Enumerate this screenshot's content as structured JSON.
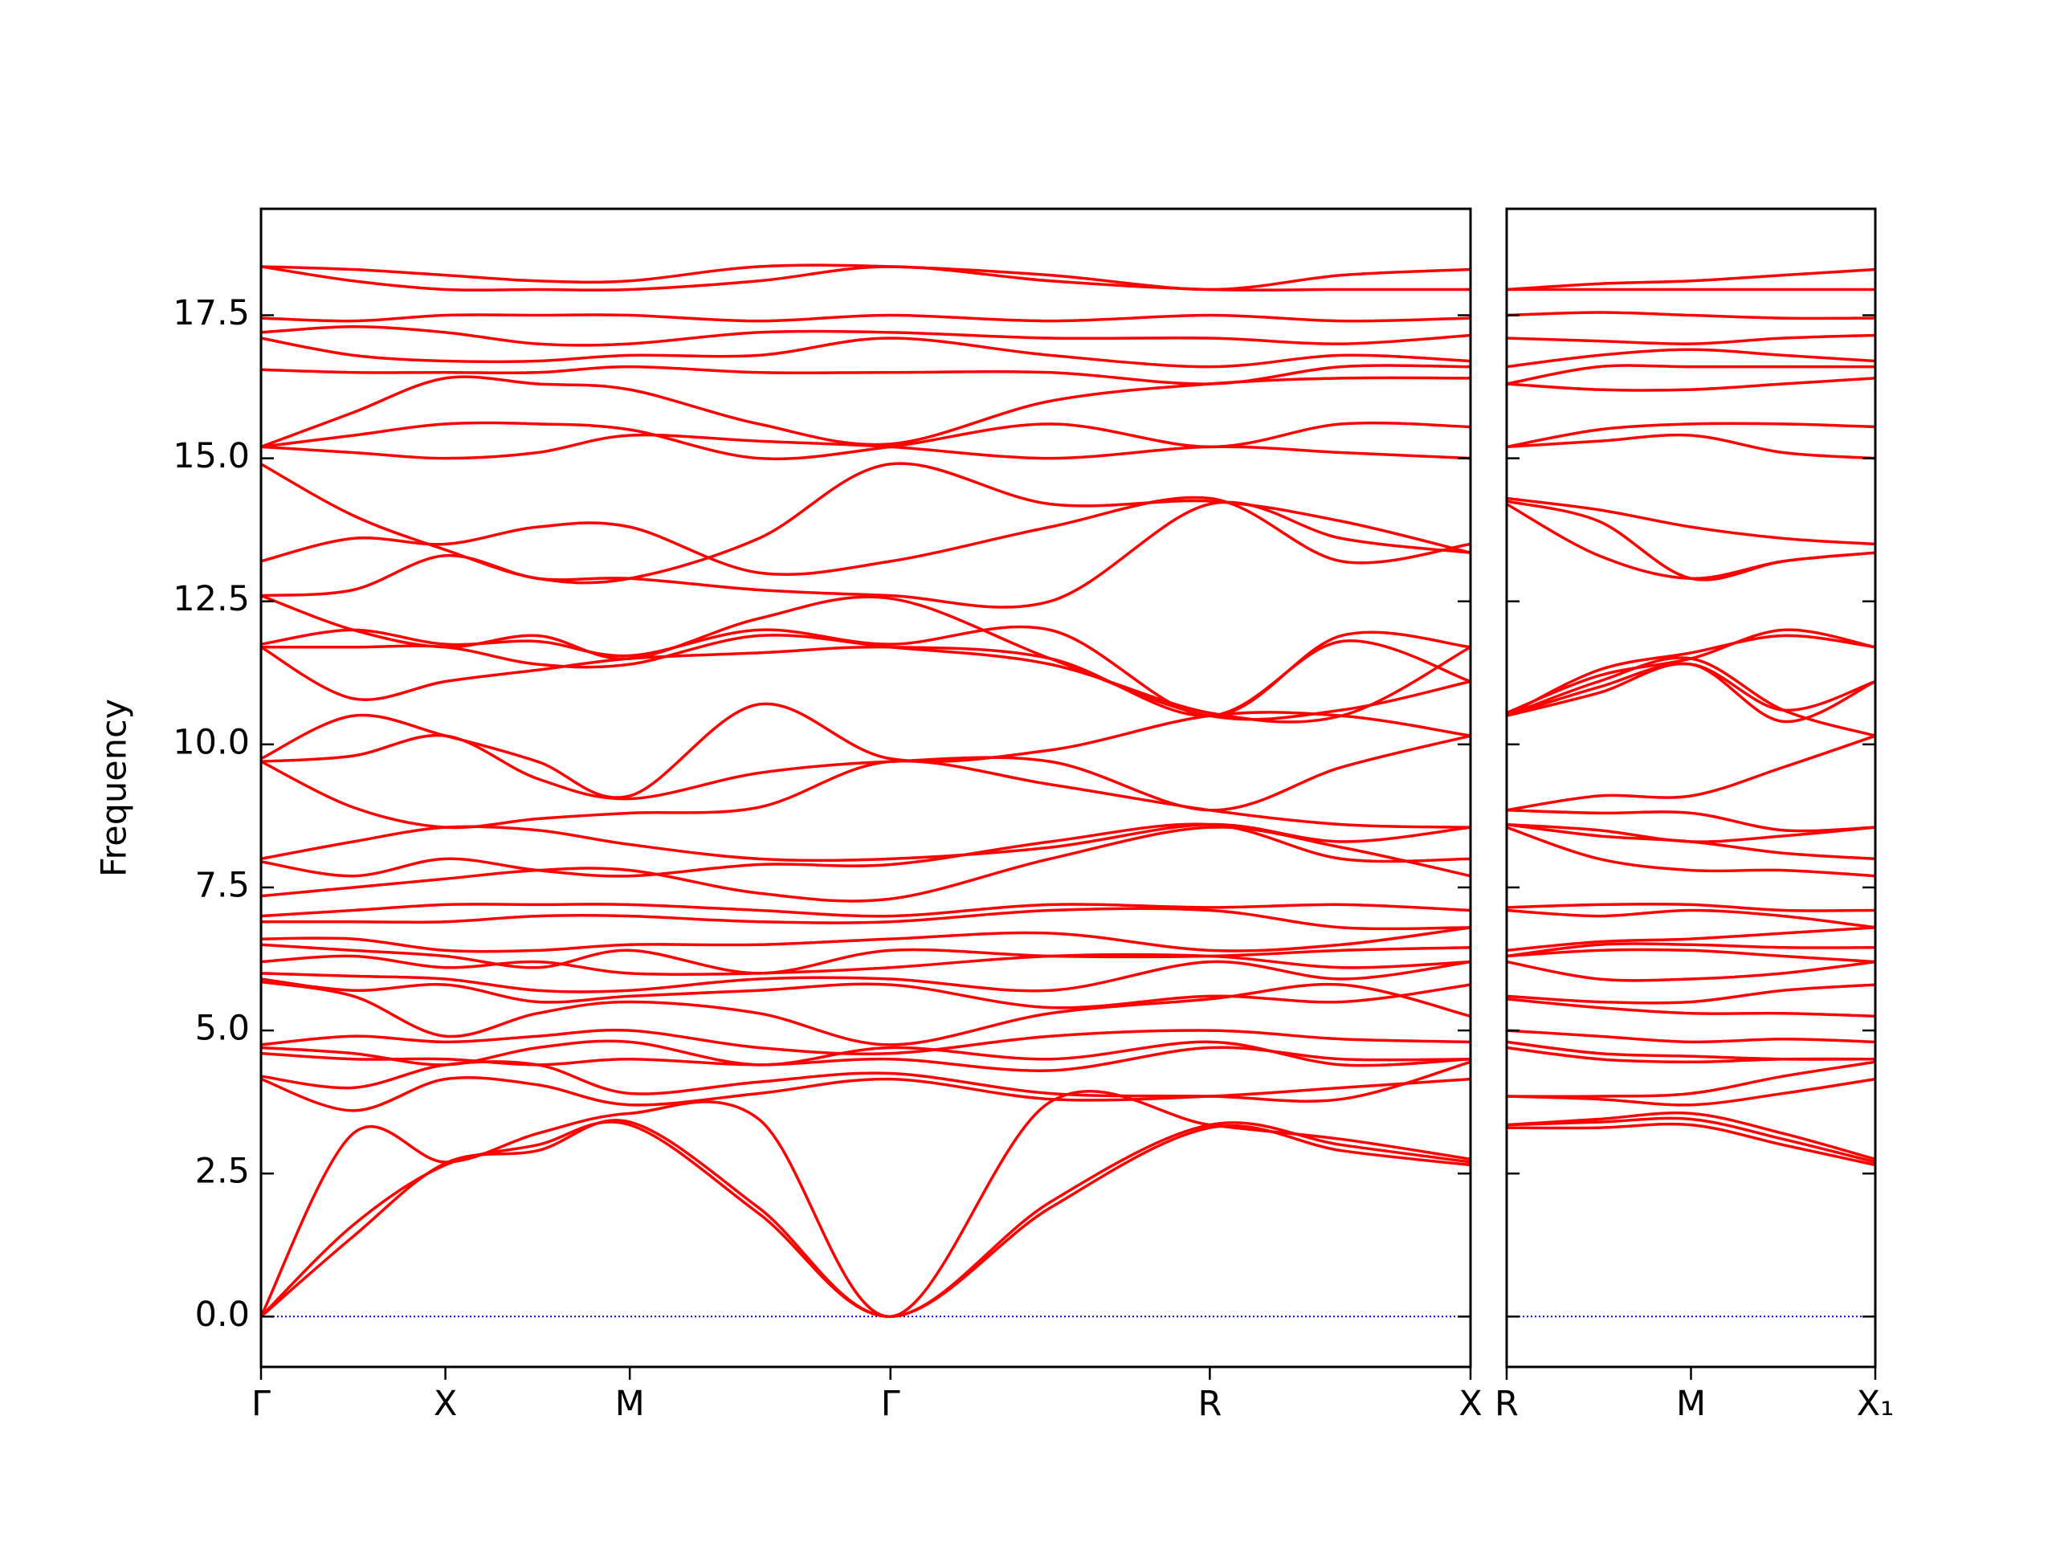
{
  "chart_data": [
    {
      "type": "line",
      "y_label": "Frequency",
      "color": "#ff0000",
      "hline": 0,
      "hline_color": "#0000cc",
      "x": [
        0,
        0.25,
        0.5,
        0.75,
        1.0,
        1.35,
        1.707,
        2.14,
        2.573,
        2.93,
        3.28
      ],
      "xlim": [
        0,
        3.28
      ],
      "xticks": [
        {
          "value": 0,
          "label": "Γ"
        },
        {
          "value": 0.5,
          "label": "X"
        },
        {
          "value": 1.0,
          "label": "M"
        },
        {
          "value": 1.707,
          "label": "Γ"
        },
        {
          "value": 2.573,
          "label": "R"
        },
        {
          "value": 3.28,
          "label": "X"
        }
      ],
      "ylim": [
        -0.88,
        19.36
      ],
      "yticks": [
        {
          "value": 0,
          "label": "0.0"
        },
        2.5,
        {
          "value": 5,
          "label": "5.0"
        },
        7.5,
        {
          "value": 10,
          "label": "10.0"
        },
        12.5,
        {
          "value": 15,
          "label": "15.0"
        },
        17.5
      ],
      "series": [
        {
          "values": [
            0,
            1.6,
            2.65,
            3.0,
            3.35,
            1.8,
            0,
            1.9,
            3.3,
            2.9,
            2.65
          ]
        },
        {
          "values": [
            0,
            1.4,
            2.68,
            2.9,
            3.4,
            1.9,
            0,
            2.0,
            3.35,
            3.0,
            2.7
          ]
        },
        {
          "values": [
            0,
            3.2,
            2.7,
            3.2,
            3.55,
            3.45,
            0,
            3.75,
            3.35,
            3.1,
            2.75
          ]
        },
        {
          "values": [
            4.15,
            3.6,
            4.15,
            4.05,
            3.7,
            3.9,
            4.15,
            3.8,
            3.85,
            4.0,
            4.15
          ]
        },
        {
          "values": [
            4.2,
            4.0,
            4.4,
            4.4,
            3.9,
            4.1,
            4.25,
            3.9,
            3.85,
            3.8,
            4.45
          ]
        },
        {
          "values": [
            4.6,
            4.5,
            4.5,
            4.4,
            4.5,
            4.4,
            4.5,
            4.3,
            4.7,
            4.5,
            4.5
          ]
        },
        {
          "values": [
            4.7,
            4.6,
            4.4,
            4.7,
            4.8,
            4.4,
            4.7,
            4.5,
            4.8,
            4.4,
            4.5
          ]
        },
        {
          "values": [
            4.75,
            4.9,
            4.8,
            4.9,
            5.0,
            4.7,
            4.6,
            4.9,
            5.0,
            4.85,
            4.8
          ]
        },
        {
          "values": [
            5.85,
            5.6,
            4.9,
            5.3,
            5.5,
            5.3,
            4.75,
            5.3,
            5.55,
            5.8,
            5.25
          ]
        },
        {
          "values": [
            5.9,
            5.7,
            5.8,
            5.5,
            5.6,
            5.7,
            5.8,
            5.4,
            5.6,
            5.5,
            5.8
          ]
        },
        {
          "values": [
            6.0,
            5.95,
            5.9,
            5.7,
            5.7,
            5.9,
            5.9,
            5.7,
            6.2,
            5.9,
            6.2
          ]
        },
        {
          "values": [
            6.2,
            6.3,
            6.1,
            6.2,
            6.0,
            6.0,
            6.1,
            6.3,
            6.3,
            6.1,
            6.2
          ]
        },
        {
          "values": [
            6.5,
            6.4,
            6.3,
            6.1,
            6.4,
            6.0,
            6.4,
            6.3,
            6.3,
            6.4,
            6.45
          ]
        },
        {
          "values": [
            6.6,
            6.6,
            6.4,
            6.4,
            6.5,
            6.5,
            6.6,
            6.7,
            6.4,
            6.5,
            6.8
          ]
        },
        {
          "values": [
            6.9,
            6.9,
            6.9,
            7.0,
            7.0,
            6.9,
            6.9,
            7.1,
            7.1,
            6.8,
            6.8
          ]
        },
        {
          "values": [
            7.0,
            7.1,
            7.2,
            7.2,
            7.2,
            7.1,
            7.0,
            7.2,
            7.15,
            7.2,
            7.1
          ]
        },
        {
          "values": [
            7.35,
            7.5,
            7.65,
            7.8,
            7.8,
            7.4,
            7.3,
            8.0,
            8.55,
            8.2,
            7.7
          ]
        },
        {
          "values": [
            7.95,
            7.7,
            8.0,
            7.8,
            7.7,
            7.9,
            7.9,
            8.3,
            8.6,
            8.0,
            8.0
          ]
        },
        {
          "values": [
            8.0,
            8.3,
            8.55,
            8.5,
            8.25,
            8.0,
            8.0,
            8.2,
            8.6,
            8.3,
            8.55
          ]
        },
        {
          "values": [
            9.7,
            8.9,
            8.55,
            8.7,
            8.8,
            8.9,
            9.7,
            9.3,
            8.85,
            8.6,
            8.55
          ]
        },
        {
          "values": [
            9.7,
            9.8,
            10.15,
            9.4,
            9.05,
            9.5,
            9.7,
            9.7,
            8.85,
            9.6,
            10.15
          ]
        },
        {
          "values": [
            9.75,
            10.5,
            10.15,
            9.7,
            9.1,
            10.7,
            9.75,
            9.9,
            10.5,
            10.5,
            10.15
          ]
        },
        {
          "values": [
            11.7,
            10.8,
            11.1,
            11.3,
            11.5,
            11.6,
            11.7,
            11.5,
            10.5,
            11.8,
            11.1
          ]
        },
        {
          "values": [
            11.7,
            11.7,
            11.7,
            11.4,
            11.4,
            11.9,
            11.7,
            11.4,
            10.55,
            10.5,
            11.7
          ]
        },
        {
          "values": [
            11.75,
            12.0,
            11.75,
            11.8,
            11.55,
            12.0,
            11.75,
            12.0,
            10.5,
            11.9,
            11.7
          ]
        },
        {
          "values": [
            12.6,
            12.0,
            11.7,
            11.9,
            11.5,
            12.2,
            12.55,
            11.5,
            10.5,
            10.6,
            11.1
          ]
        },
        {
          "values": [
            12.6,
            12.7,
            13.3,
            12.9,
            12.9,
            12.7,
            12.6,
            12.5,
            14.2,
            13.6,
            13.35
          ]
        },
        {
          "values": [
            13.2,
            13.6,
            13.5,
            13.8,
            13.8,
            13.0,
            13.2,
            13.8,
            14.3,
            13.2,
            13.5
          ]
        },
        {
          "values": [
            14.9,
            14.0,
            13.4,
            12.9,
            12.9,
            13.6,
            14.9,
            14.2,
            14.25,
            13.9,
            13.35
          ]
        },
        {
          "values": [
            15.2,
            15.1,
            15.0,
            15.1,
            15.4,
            15.3,
            15.2,
            15.0,
            15.2,
            15.1,
            15.0
          ]
        },
        {
          "values": [
            15.2,
            15.4,
            15.6,
            15.6,
            15.5,
            15.0,
            15.2,
            15.6,
            15.2,
            15.6,
            15.55
          ]
        },
        {
          "values": [
            15.2,
            15.8,
            16.4,
            16.3,
            16.2,
            15.6,
            15.25,
            16.0,
            16.3,
            16.4,
            16.4
          ]
        },
        {
          "values": [
            16.55,
            16.5,
            16.5,
            16.5,
            16.6,
            16.5,
            16.5,
            16.5,
            16.3,
            16.6,
            16.6
          ]
        },
        {
          "values": [
            17.1,
            16.8,
            16.7,
            16.7,
            16.8,
            16.8,
            17.1,
            16.8,
            16.6,
            16.8,
            16.7
          ]
        },
        {
          "values": [
            17.2,
            17.3,
            17.2,
            17.0,
            17.0,
            17.2,
            17.2,
            17.1,
            17.1,
            17.0,
            17.15
          ]
        },
        {
          "values": [
            17.45,
            17.4,
            17.5,
            17.5,
            17.5,
            17.4,
            17.5,
            17.4,
            17.5,
            17.4,
            17.45
          ]
        },
        {
          "values": [
            18.35,
            18.1,
            17.95,
            17.95,
            17.95,
            18.1,
            18.35,
            18.1,
            17.95,
            17.95,
            17.95
          ]
        },
        {
          "values": [
            18.35,
            18.3,
            18.2,
            18.1,
            18.1,
            18.35,
            18.35,
            18.2,
            17.95,
            18.2,
            18.3
          ]
        }
      ]
    },
    {
      "type": "line",
      "color": "#ff0000",
      "hline": 0,
      "hline_color": "#0000cc",
      "x": [
        0,
        0.25,
        0.5,
        0.75,
        1.0
      ],
      "xlim": [
        0,
        1.0
      ],
      "xticks": [
        {
          "value": 0,
          "label": "R"
        },
        {
          "value": 0.5,
          "label": "M"
        },
        {
          "value": 1.0,
          "label": "X₁"
        }
      ],
      "ylim": [
        -0.88,
        19.36
      ],
      "yticks": [
        0,
        2.5,
        5,
        7.5,
        10,
        12.5,
        15,
        17.5
      ],
      "ytick_labels": false,
      "series": [
        {
          "values": [
            3.3,
            3.3,
            3.35,
            3.0,
            2.65
          ]
        },
        {
          "values": [
            3.35,
            3.4,
            3.45,
            3.1,
            2.7
          ]
        },
        {
          "values": [
            3.35,
            3.45,
            3.55,
            3.2,
            2.75
          ]
        },
        {
          "values": [
            3.85,
            3.8,
            3.7,
            3.9,
            4.15
          ]
        },
        {
          "values": [
            3.85,
            3.85,
            3.9,
            4.2,
            4.45
          ]
        },
        {
          "values": [
            4.7,
            4.5,
            4.45,
            4.5,
            4.5
          ]
        },
        {
          "values": [
            4.8,
            4.6,
            4.55,
            4.5,
            4.5
          ]
        },
        {
          "values": [
            5.0,
            4.9,
            4.8,
            4.85,
            4.8
          ]
        },
        {
          "values": [
            5.55,
            5.4,
            5.3,
            5.3,
            5.25
          ]
        },
        {
          "values": [
            5.6,
            5.5,
            5.5,
            5.7,
            5.8
          ]
        },
        {
          "values": [
            6.2,
            5.9,
            5.9,
            6.0,
            6.2
          ]
        },
        {
          "values": [
            6.3,
            6.4,
            6.4,
            6.3,
            6.2
          ]
        },
        {
          "values": [
            6.3,
            6.5,
            6.5,
            6.45,
            6.45
          ]
        },
        {
          "values": [
            6.4,
            6.55,
            6.6,
            6.7,
            6.8
          ]
        },
        {
          "values": [
            7.1,
            7.0,
            7.1,
            7.0,
            6.8
          ]
        },
        {
          "values": [
            7.15,
            7.2,
            7.2,
            7.1,
            7.1
          ]
        },
        {
          "values": [
            8.55,
            8.0,
            7.8,
            7.8,
            7.7
          ]
        },
        {
          "values": [
            8.6,
            8.4,
            8.3,
            8.1,
            8.0
          ]
        },
        {
          "values": [
            8.6,
            8.5,
            8.3,
            8.4,
            8.55
          ]
        },
        {
          "values": [
            8.85,
            8.8,
            8.8,
            8.5,
            8.55
          ]
        },
        {
          "values": [
            8.85,
            9.1,
            9.1,
            9.6,
            10.15
          ]
        },
        {
          "values": [
            10.5,
            11.1,
            11.5,
            10.6,
            10.15
          ]
        },
        {
          "values": [
            10.5,
            10.9,
            11.4,
            10.4,
            11.1
          ]
        },
        {
          "values": [
            10.55,
            11.2,
            11.5,
            12.0,
            11.7
          ]
        },
        {
          "values": [
            10.5,
            11.3,
            11.6,
            11.9,
            11.7
          ]
        },
        {
          "values": [
            10.5,
            11.0,
            11.4,
            10.6,
            11.1
          ]
        },
        {
          "values": [
            14.2,
            13.3,
            12.9,
            13.2,
            13.35
          ]
        },
        {
          "values": [
            14.3,
            14.1,
            13.8,
            13.6,
            13.5
          ]
        },
        {
          "values": [
            14.25,
            13.9,
            12.9,
            13.2,
            13.35
          ]
        },
        {
          "values": [
            15.2,
            15.3,
            15.4,
            15.1,
            15.0
          ]
        },
        {
          "values": [
            15.2,
            15.5,
            15.6,
            15.6,
            15.55
          ]
        },
        {
          "values": [
            16.3,
            16.2,
            16.2,
            16.3,
            16.4
          ]
        },
        {
          "values": [
            16.3,
            16.6,
            16.6,
            16.6,
            16.6
          ]
        },
        {
          "values": [
            16.6,
            16.8,
            16.9,
            16.8,
            16.7
          ]
        },
        {
          "values": [
            17.1,
            17.05,
            17.0,
            17.1,
            17.15
          ]
        },
        {
          "values": [
            17.5,
            17.55,
            17.5,
            17.45,
            17.45
          ]
        },
        {
          "values": [
            17.95,
            17.95,
            17.95,
            17.95,
            17.95
          ]
        },
        {
          "values": [
            17.95,
            18.05,
            18.1,
            18.2,
            18.3
          ]
        }
      ]
    }
  ]
}
